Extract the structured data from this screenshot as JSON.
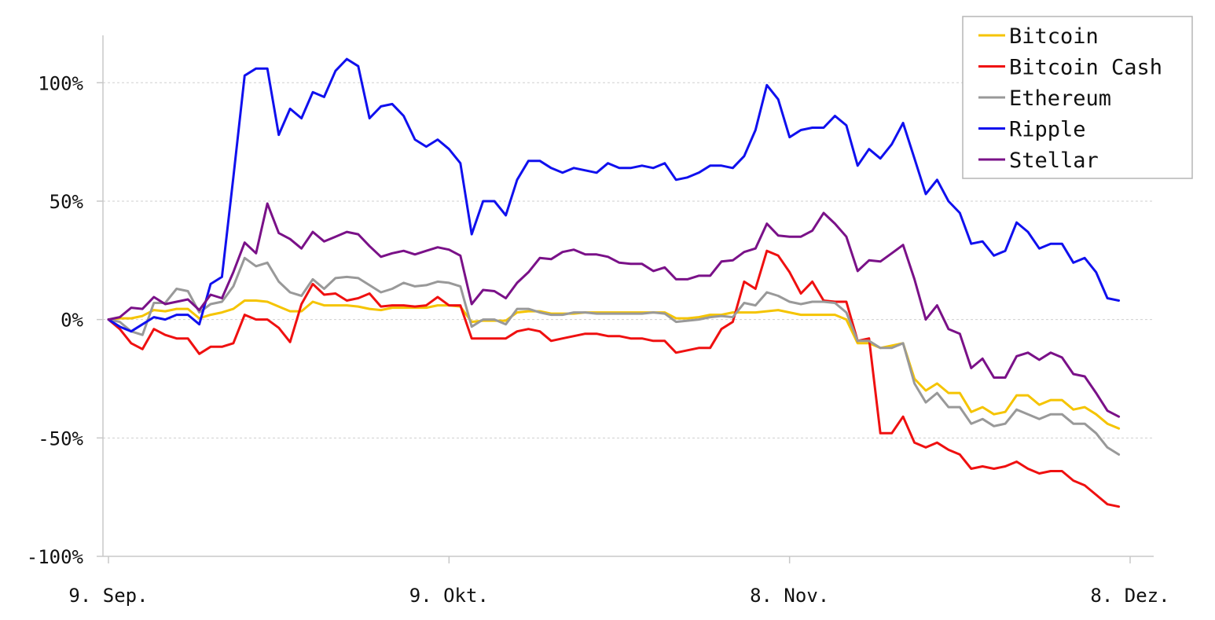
{
  "chart_data": {
    "type": "line",
    "title": "",
    "xlabel": "",
    "ylabel": "",
    "x_ticks": [
      {
        "day": 0,
        "label": "9. Sep."
      },
      {
        "day": 30,
        "label": "9. Okt."
      },
      {
        "day": 60,
        "label": "8. Nov."
      },
      {
        "day": 90,
        "label": "8. Dez."
      }
    ],
    "y_ticks": [
      {
        "value": 100,
        "label": "100%"
      },
      {
        "value": 50,
        "label": "50%"
      },
      {
        "value": 0,
        "label": "0%"
      },
      {
        "value": -50,
        "label": "-50%"
      },
      {
        "value": -100,
        "label": "-100%"
      }
    ],
    "xlim": [
      0,
      90
    ],
    "ylim": [
      -100,
      120
    ],
    "grid": "horizontal dashed",
    "legend_position": "top-right",
    "series": [
      {
        "name": "Bitcoin",
        "color": "#f5c400",
        "values": [
          0,
          0.5,
          0.5,
          1.5,
          4,
          3.5,
          4.5,
          4.5,
          0.5,
          2,
          3,
          4.5,
          8,
          8,
          7.5,
          5.5,
          3.5,
          3.5,
          7.5,
          6,
          6,
          6,
          5.5,
          4.5,
          4,
          5,
          5,
          5,
          5,
          6,
          6,
          5.5,
          -1,
          -0.5,
          -0.5,
          -0.5,
          3,
          3.5,
          3.5,
          2.5,
          2.5,
          2.5,
          3,
          3,
          3,
          3,
          3,
          3,
          3,
          3,
          0.5,
          0.5,
          1,
          2,
          2,
          3,
          3,
          3,
          3.5,
          4,
          3,
          2,
          2,
          2,
          2,
          0,
          -10,
          -10,
          -12,
          -11,
          -10,
          -25,
          -30,
          -27,
          -31,
          -31,
          -39,
          -37,
          -40,
          -39,
          -32,
          -32,
          -36,
          -34,
          -34,
          -38,
          -37,
          -40,
          -44,
          -46
        ]
      },
      {
        "name": "Bitcoin Cash",
        "color": "#ef1010",
        "values": [
          0,
          -4,
          -10,
          -12.5,
          -4,
          -6.5,
          -8,
          -8,
          -14.5,
          -11.5,
          -11.5,
          -10,
          2,
          0,
          0,
          -3.5,
          -9.5,
          6.5,
          15,
          10.5,
          11,
          8,
          9,
          11,
          5.5,
          6,
          6,
          5.5,
          6,
          9.5,
          6,
          6,
          -8,
          -8,
          -8,
          -8,
          -5,
          -4,
          -5,
          -9,
          -8,
          -7,
          -6,
          -6,
          -7,
          -7,
          -8,
          -8,
          -9,
          -9,
          -14,
          -13,
          -12,
          -12,
          -4,
          -1,
          16,
          13,
          29,
          27,
          20,
          11,
          16,
          8,
          7.5,
          7.5,
          -9,
          -8,
          -48,
          -48,
          -41,
          -52,
          -54,
          -52,
          -55,
          -57,
          -63,
          -62,
          -63,
          -62,
          -60,
          -63,
          -65,
          -64,
          -64,
          -68,
          -70,
          -74,
          -78,
          -79
        ]
      },
      {
        "name": "Ethereum",
        "color": "#999999",
        "values": [
          0,
          -1,
          -5,
          -6.5,
          7,
          7,
          13,
          12,
          3,
          6.5,
          7.5,
          14,
          26,
          22.5,
          24,
          16,
          11.5,
          10,
          17,
          13,
          17.5,
          18,
          17.5,
          14.5,
          11.5,
          13,
          15.5,
          14,
          14.5,
          16,
          15.5,
          14,
          -3,
          0,
          0,
          -2,
          4.5,
          4.5,
          3,
          2,
          2,
          3,
          3,
          2.5,
          2.5,
          2.5,
          2.5,
          2.5,
          3,
          2.5,
          -1,
          -0.5,
          0,
          1,
          1.5,
          1,
          7,
          6,
          11.5,
          10,
          7.5,
          6.5,
          7.5,
          7.5,
          7,
          3,
          -9,
          -9,
          -12,
          -12,
          -10,
          -27,
          -35,
          -31,
          -37,
          -37,
          -44,
          -42,
          -45,
          -44,
          -38,
          -40,
          -42,
          -40,
          -40,
          -44,
          -44,
          -48,
          -54,
          -57
        ]
      },
      {
        "name": "Ripple",
        "color": "#1010ee",
        "values": [
          0,
          -3,
          -5,
          -2,
          1,
          0,
          2,
          2,
          -2,
          15,
          18,
          60,
          103,
          106,
          106,
          78,
          89,
          85,
          96,
          94,
          105,
          110,
          107,
          85,
          90,
          91,
          86,
          76,
          73,
          76,
          72,
          66,
          36,
          50,
          50,
          44,
          59,
          67,
          67,
          64,
          62,
          64,
          63,
          62,
          66,
          64,
          64,
          65,
          64,
          66,
          59,
          60,
          62,
          65,
          65,
          64,
          69,
          80,
          99,
          93,
          77,
          80,
          81,
          81,
          86,
          82,
          65,
          72,
          68,
          74,
          83,
          68,
          53,
          59,
          50,
          45,
          32,
          33,
          27,
          29,
          41,
          37,
          30,
          32,
          32,
          24,
          26,
          20,
          9,
          8
        ]
      },
      {
        "name": "Stellar",
        "color": "#7a1188",
        "values": [
          0,
          1,
          5,
          4.5,
          9.5,
          6.5,
          7.5,
          8.5,
          4,
          10.5,
          9,
          20,
          32.5,
          28,
          49,
          36.5,
          34,
          30,
          37,
          33,
          35,
          37,
          36,
          31,
          26.5,
          28,
          29,
          27.5,
          29,
          30.5,
          29.5,
          27,
          6.5,
          12.5,
          12,
          9,
          15.5,
          20,
          26,
          25.5,
          28.5,
          29.5,
          27.5,
          27.5,
          26.5,
          24,
          23.5,
          23.5,
          20.5,
          22,
          17,
          17,
          18.5,
          18.5,
          24.5,
          25,
          28.5,
          30,
          40.5,
          35.5,
          35,
          35,
          37.5,
          45,
          40.5,
          35,
          20.5,
          25,
          24.5,
          28,
          31.5,
          17,
          0,
          6,
          -4,
          -6,
          -20.5,
          -16.5,
          -24.5,
          -24.5,
          -15.5,
          -14,
          -17,
          -14,
          -16,
          -23,
          -24,
          -31,
          -38.5,
          -41
        ]
      }
    ]
  }
}
